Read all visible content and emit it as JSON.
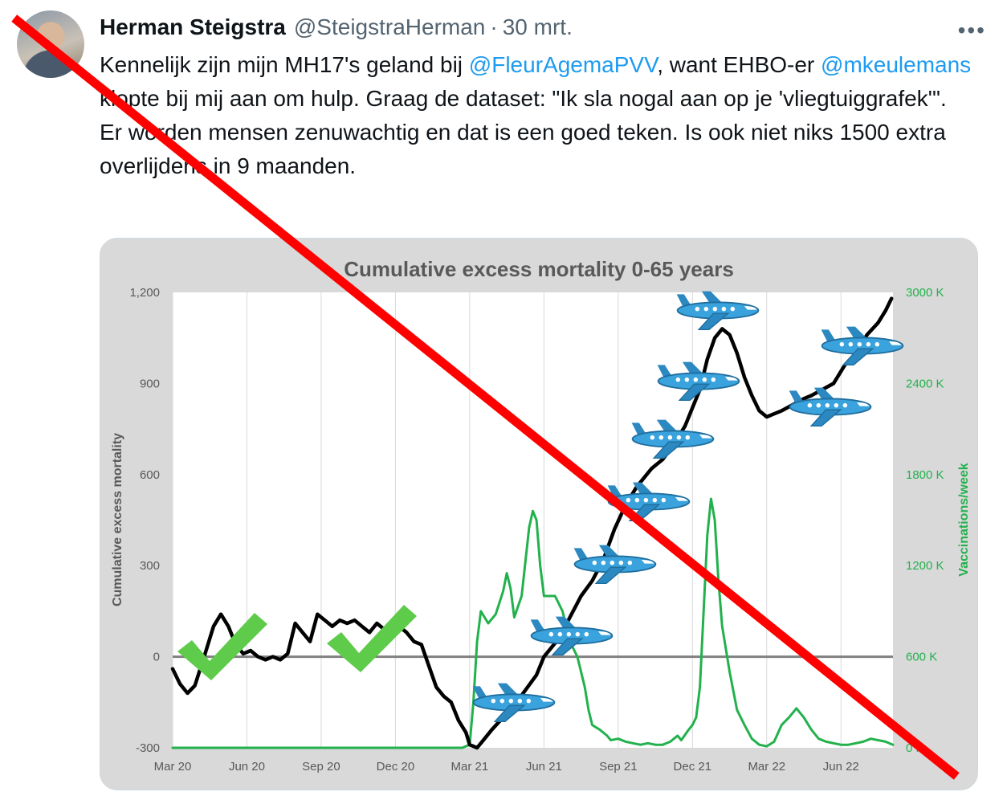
{
  "tweet": {
    "author_name": "Herman Steigstra",
    "author_handle": "@SteigstraHerman",
    "separator": "·",
    "date": "30 mrt.",
    "more_label": "•••",
    "text": {
      "seg1": "Kennelijk zijn mijn MH17's geland bij ",
      "mention1": "@FleurAgemaPVV",
      "seg2": ", want EHBO-er ",
      "mention2": "@mkeulemans",
      "seg3": " klopte bij mij aan om hulp. Graag de dataset: \"Ik sla nogal aan op je 'vliegtuiggrafek'\".",
      "line2": "Er worden mensen zenuwachtig en dat is een goed teken. Is ook niet niks 1500 extra overlijdens in 9 maanden."
    }
  },
  "chart_data": {
    "type": "line",
    "title": "Cumulative excess mortality 0-65 years",
    "ylabel": "Cumulative excess mortality",
    "y2label": "Vaccinations/week",
    "ylim": [
      -300,
      1200
    ],
    "y2lim": [
      0,
      3000
    ],
    "yticks": [
      "1,200",
      "900",
      "600",
      "300",
      "0",
      "-300"
    ],
    "y2ticks": [
      "3000 K",
      "2400 K",
      "1800 K",
      "1200 K",
      "600 K",
      "0 K"
    ],
    "x_categories": [
      "Mar 20",
      "Jun 20",
      "Sep 20",
      "Dec 20",
      "Mar 21",
      "Jun 21",
      "Sep 21",
      "Dec 21",
      "Mar 22",
      "Jun 22"
    ],
    "x_range": [
      0,
      9.7
    ],
    "grid": "vertical",
    "colors": {
      "mortality": "#000000",
      "vaccinations": "#22b14c",
      "zero_line": "#808080",
      "plot_bg": "#ffffff",
      "card_bg": "#d9d9d9",
      "plane": "#3aa3dd",
      "check": "#5ecb4a",
      "strike": "#ff0000"
    },
    "series": [
      {
        "name": "Cumulative excess mortality",
        "axis": "left",
        "color": "#000000",
        "points": [
          [
            0,
            -40
          ],
          [
            0.1,
            -90
          ],
          [
            0.2,
            -120
          ],
          [
            0.3,
            -95
          ],
          [
            0.45,
            20
          ],
          [
            0.55,
            100
          ],
          [
            0.65,
            140
          ],
          [
            0.75,
            100
          ],
          [
            0.85,
            40
          ],
          [
            0.95,
            10
          ],
          [
            1.05,
            20
          ],
          [
            1.15,
            0
          ],
          [
            1.25,
            -10
          ],
          [
            1.35,
            0
          ],
          [
            1.45,
            -10
          ],
          [
            1.55,
            10
          ],
          [
            1.65,
            110
          ],
          [
            1.75,
            80
          ],
          [
            1.85,
            50
          ],
          [
            1.95,
            140
          ],
          [
            2.05,
            120
          ],
          [
            2.15,
            100
          ],
          [
            2.25,
            120
          ],
          [
            2.35,
            110
          ],
          [
            2.45,
            120
          ],
          [
            2.55,
            100
          ],
          [
            2.65,
            80
          ],
          [
            2.75,
            110
          ],
          [
            2.85,
            90
          ],
          [
            2.95,
            70
          ],
          [
            3.05,
            100
          ],
          [
            3.15,
            80
          ],
          [
            3.25,
            50
          ],
          [
            3.35,
            40
          ],
          [
            3.45,
            -30
          ],
          [
            3.55,
            -100
          ],
          [
            3.65,
            -130
          ],
          [
            3.75,
            -150
          ],
          [
            3.85,
            -210
          ],
          [
            3.95,
            -250
          ],
          [
            4.0,
            -290
          ],
          [
            4.1,
            -300
          ],
          [
            4.2,
            -270
          ],
          [
            4.3,
            -240
          ],
          [
            4.45,
            -200
          ],
          [
            4.6,
            -160
          ],
          [
            4.75,
            -110
          ],
          [
            4.9,
            -60
          ],
          [
            5.0,
            0
          ],
          [
            5.2,
            60
          ],
          [
            5.35,
            130
          ],
          [
            5.5,
            200
          ],
          [
            5.65,
            250
          ],
          [
            5.8,
            320
          ],
          [
            5.95,
            420
          ],
          [
            6.1,
            500
          ],
          [
            6.25,
            560
          ],
          [
            6.45,
            620
          ],
          [
            6.6,
            650
          ],
          [
            6.75,
            700
          ],
          [
            6.9,
            760
          ],
          [
            7.0,
            820
          ],
          [
            7.1,
            880
          ],
          [
            7.2,
            980
          ],
          [
            7.3,
            1050
          ],
          [
            7.4,
            1080
          ],
          [
            7.5,
            1060
          ],
          [
            7.6,
            1000
          ],
          [
            7.7,
            920
          ],
          [
            7.8,
            860
          ],
          [
            7.9,
            810
          ],
          [
            8.0,
            790
          ],
          [
            8.1,
            800
          ],
          [
            8.2,
            810
          ],
          [
            8.35,
            830
          ],
          [
            8.5,
            850
          ],
          [
            8.6,
            860
          ],
          [
            8.75,
            880
          ],
          [
            8.9,
            900
          ],
          [
            9.05,
            960
          ],
          [
            9.2,
            1000
          ],
          [
            9.35,
            1060
          ],
          [
            9.5,
            1100
          ],
          [
            9.6,
            1140
          ],
          [
            9.68,
            1180
          ]
        ]
      },
      {
        "name": "Vaccinations/week",
        "axis": "right",
        "color": "#22b14c",
        "points": [
          [
            0,
            0
          ],
          [
            3.9,
            0
          ],
          [
            4.0,
            20
          ],
          [
            4.05,
            300
          ],
          [
            4.1,
            700
          ],
          [
            4.15,
            900
          ],
          [
            4.25,
            820
          ],
          [
            4.35,
            880
          ],
          [
            4.45,
            1030
          ],
          [
            4.5,
            1150
          ],
          [
            4.55,
            1050
          ],
          [
            4.6,
            860
          ],
          [
            4.7,
            1000
          ],
          [
            4.8,
            1450
          ],
          [
            4.85,
            1560
          ],
          [
            4.9,
            1500
          ],
          [
            4.95,
            1200
          ],
          [
            5.0,
            1000
          ],
          [
            5.05,
            1000
          ],
          [
            5.15,
            1000
          ],
          [
            5.25,
            900
          ],
          [
            5.35,
            700
          ],
          [
            5.45,
            600
          ],
          [
            5.5,
            500
          ],
          [
            5.55,
            400
          ],
          [
            5.6,
            250
          ],
          [
            5.65,
            150
          ],
          [
            5.75,
            120
          ],
          [
            5.85,
            80
          ],
          [
            5.9,
            50
          ],
          [
            6.0,
            60
          ],
          [
            6.1,
            40
          ],
          [
            6.2,
            30
          ],
          [
            6.3,
            20
          ],
          [
            6.4,
            30
          ],
          [
            6.5,
            20
          ],
          [
            6.6,
            20
          ],
          [
            6.7,
            40
          ],
          [
            6.8,
            80
          ],
          [
            6.85,
            50
          ],
          [
            6.95,
            120
          ],
          [
            7.0,
            150
          ],
          [
            7.05,
            200
          ],
          [
            7.1,
            400
          ],
          [
            7.15,
            900
          ],
          [
            7.2,
            1400
          ],
          [
            7.25,
            1640
          ],
          [
            7.3,
            1500
          ],
          [
            7.35,
            1100
          ],
          [
            7.4,
            800
          ],
          [
            7.5,
            500
          ],
          [
            7.6,
            250
          ],
          [
            7.7,
            150
          ],
          [
            7.8,
            60
          ],
          [
            7.9,
            20
          ],
          [
            8.0,
            10
          ],
          [
            8.1,
            40
          ],
          [
            8.2,
            150
          ],
          [
            8.3,
            200
          ],
          [
            8.4,
            260
          ],
          [
            8.5,
            200
          ],
          [
            8.6,
            120
          ],
          [
            8.7,
            60
          ],
          [
            8.8,
            40
          ],
          [
            8.9,
            30
          ],
          [
            9.0,
            20
          ],
          [
            9.1,
            20
          ],
          [
            9.2,
            30
          ],
          [
            9.3,
            40
          ],
          [
            9.4,
            60
          ],
          [
            9.5,
            50
          ],
          [
            9.6,
            40
          ],
          [
            9.7,
            20
          ]
        ]
      }
    ]
  }
}
